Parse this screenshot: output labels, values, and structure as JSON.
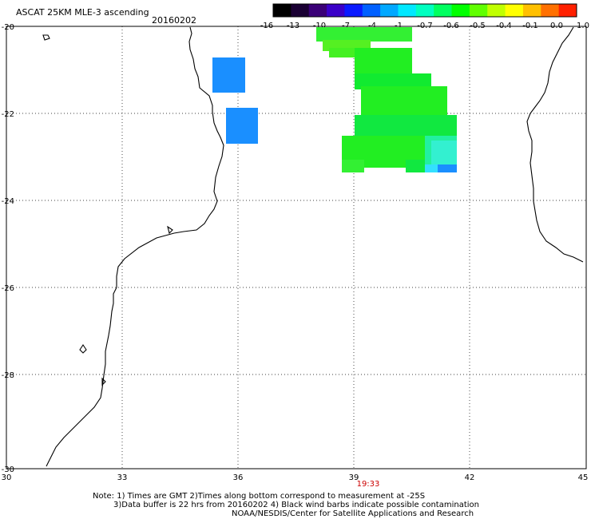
{
  "header": {
    "title": "ASCAT 25KM MLE-3 ascending",
    "date": "20160202"
  },
  "colorbar": {
    "labels": [
      "-16",
      "-13",
      "-10",
      "-7",
      "-4",
      "-1",
      "-0.7",
      "-0.6",
      "-0.5",
      "-0.4",
      "-0.1",
      "0.0",
      "1.0"
    ],
    "colors": [
      "#000000",
      "#1a0033",
      "#3a0077",
      "#3a00c8",
      "#0a1aff",
      "#0060ff",
      "#00a8ff",
      "#00e8ff",
      "#00ffc0",
      "#00ff60",
      "#00ff00",
      "#60ff00",
      "#c0ff00",
      "#ffff00",
      "#ffc000",
      "#ff7000",
      "#ff2000"
    ]
  },
  "map": {
    "lat_labels": [
      "-20",
      "-22",
      "-24",
      "-26",
      "-28",
      "-30"
    ],
    "lon_labels": [
      "30",
      "33",
      "36",
      "39",
      "42",
      "45"
    ],
    "pass_time": "19:33"
  },
  "footer": {
    "line1": "Note: 1) Times are GMT 2)Times along bottom correspond to measurement at -25S",
    "line2": "3)Data buffer is 22 hrs from 20160202 4) Black wind barbs indicate possible contamination",
    "line3": "NOAA/NESDIS/Center for Satellite Applications and Research"
  },
  "colors": {
    "grid": "#000000",
    "coast": "#000000",
    "pass_time": "#cc0000",
    "blue_cell": "#1a8fff",
    "green_cell": "#22ee22"
  }
}
